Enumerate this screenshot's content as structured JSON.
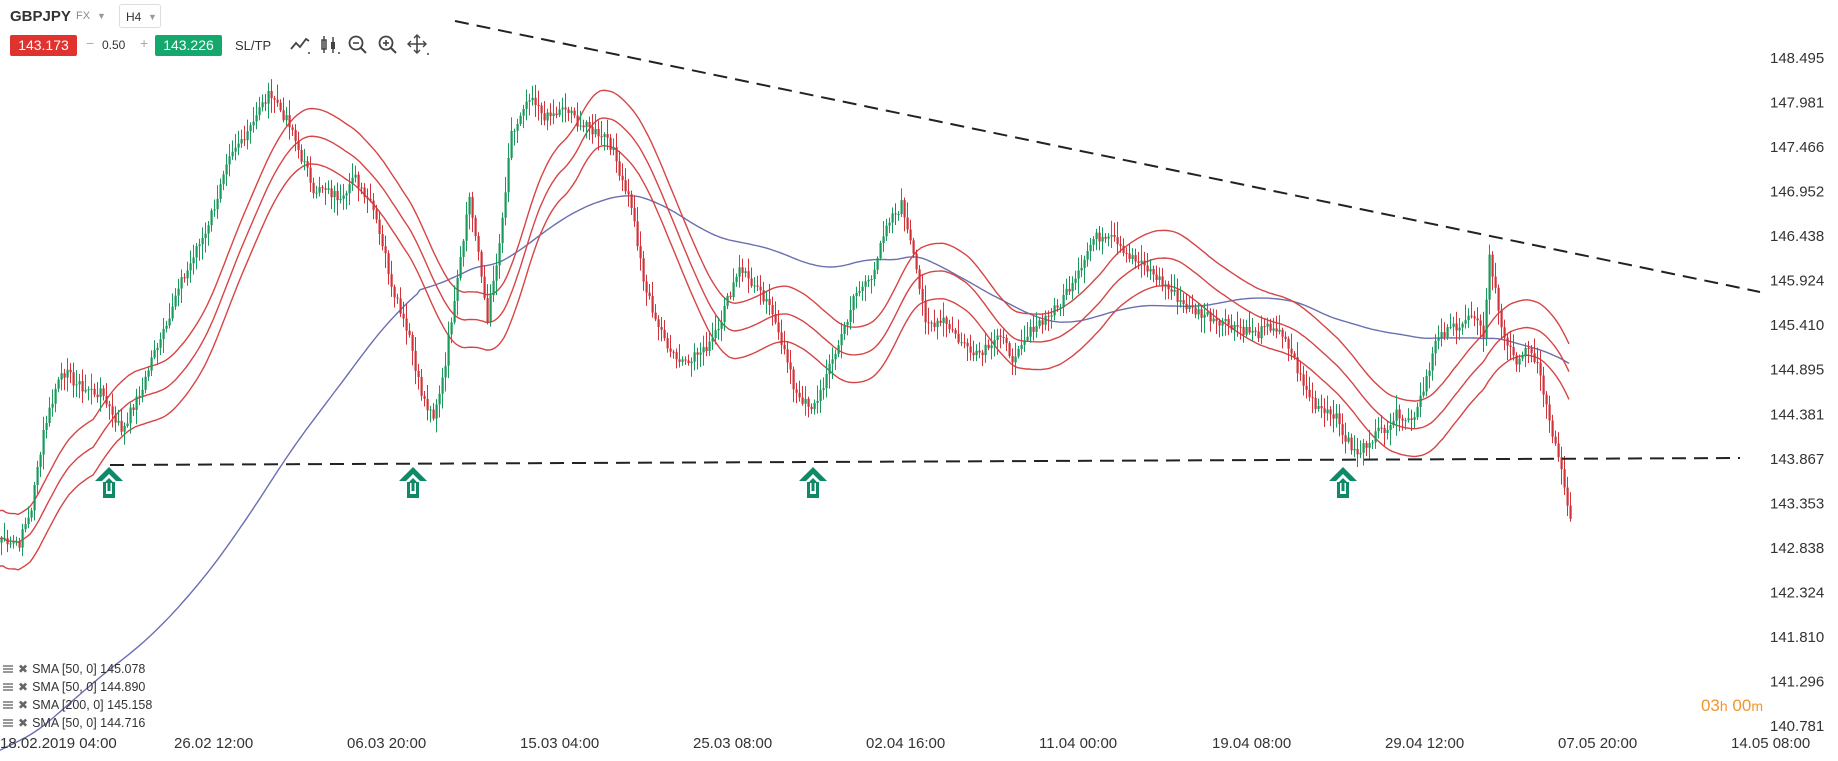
{
  "header": {
    "symbol": "GBPJPY",
    "market": "FX",
    "timeframe": "H4",
    "sell_price": "143.173",
    "buy_price": "143.226",
    "lot_value": "0.50",
    "lot_minus": "−",
    "lot_plus": "+",
    "sltp_label": "SL/TP"
  },
  "tools": [
    "line-chart-icon",
    "candles-icon",
    "zoom-out-icon",
    "zoom-in-icon",
    "crosshair-icon"
  ],
  "colors": {
    "bull": "#1a9a5b",
    "bear": "#d1333b",
    "envelope": "#d64545",
    "sma200": "#6a6fb0",
    "arrow": "#0f8a66",
    "sell": "#e0322f",
    "buy": "#15a86c",
    "timer": "#f0962d"
  },
  "chart_data": {
    "type": "candlestick",
    "symbol": "GBPJPY",
    "timeframe": "H4",
    "ylim": [
      140.6,
      149.0
    ],
    "price_ticks": [
      "148.495",
      "147.981",
      "147.466",
      "146.952",
      "146.438",
      "145.924",
      "145.410",
      "144.895",
      "144.381",
      "143.867",
      "143.353",
      "142.838",
      "142.324",
      "141.810",
      "141.296",
      "140.781"
    ],
    "time_ticks": [
      "18.02.2019 04:00",
      "26.02 12:00",
      "06.03 20:00",
      "15.03 04:00",
      "25.03 08:00",
      "02.04 16:00",
      "11.04 00:00",
      "19.04 08:00",
      "29.04 12:00",
      "07.05 20:00",
      "14.05 08:00"
    ],
    "anchors": [
      [
        0,
        142.95
      ],
      [
        6,
        142.9
      ],
      [
        10,
        143.3
      ],
      [
        14,
        144.2
      ],
      [
        20,
        144.9
      ],
      [
        26,
        144.7
      ],
      [
        34,
        144.6
      ],
      [
        40,
        144.2
      ],
      [
        46,
        144.6
      ],
      [
        52,
        145.2
      ],
      [
        60,
        145.9
      ],
      [
        68,
        146.5
      ],
      [
        76,
        147.3
      ],
      [
        84,
        147.8
      ],
      [
        90,
        148.1
      ],
      [
        96,
        147.7
      ],
      [
        104,
        147.0
      ],
      [
        112,
        146.9
      ],
      [
        118,
        147.1
      ],
      [
        124,
        146.8
      ],
      [
        130,
        145.9
      ],
      [
        136,
        145.3
      ],
      [
        140,
        144.6
      ],
      [
        144,
        144.3
      ],
      [
        148,
        145.0
      ],
      [
        152,
        146.0
      ],
      [
        156,
        146.9
      ],
      [
        162,
        145.5
      ],
      [
        166,
        146.3
      ],
      [
        170,
        147.6
      ],
      [
        176,
        148.0
      ],
      [
        182,
        147.8
      ],
      [
        188,
        147.9
      ],
      [
        194,
        147.7
      ],
      [
        202,
        147.6
      ],
      [
        210,
        146.8
      ],
      [
        214,
        145.9
      ],
      [
        220,
        145.3
      ],
      [
        226,
        145.0
      ],
      [
        234,
        145.1
      ],
      [
        240,
        145.5
      ],
      [
        246,
        146.1
      ],
      [
        252,
        145.8
      ],
      [
        258,
        145.5
      ],
      [
        264,
        144.7
      ],
      [
        270,
        144.4
      ],
      [
        276,
        144.9
      ],
      [
        284,
        145.7
      ],
      [
        290,
        146.0
      ],
      [
        296,
        146.6
      ],
      [
        300,
        146.8
      ],
      [
        304,
        146.3
      ],
      [
        308,
        145.4
      ],
      [
        314,
        145.5
      ],
      [
        320,
        145.2
      ],
      [
        326,
        145.1
      ],
      [
        332,
        145.3
      ],
      [
        338,
        145.0
      ],
      [
        344,
        145.4
      ],
      [
        352,
        145.6
      ],
      [
        358,
        146.0
      ],
      [
        364,
        146.4
      ],
      [
        370,
        146.5
      ],
      [
        376,
        146.2
      ],
      [
        384,
        146.0
      ],
      [
        390,
        145.8
      ],
      [
        396,
        145.6
      ],
      [
        404,
        145.5
      ],
      [
        412,
        145.4
      ],
      [
        418,
        145.3
      ],
      [
        424,
        145.4
      ],
      [
        430,
        145.1
      ],
      [
        434,
        144.7
      ],
      [
        438,
        144.5
      ],
      [
        444,
        144.4
      ],
      [
        448,
        144.1
      ],
      [
        452,
        143.9
      ],
      [
        456,
        144.1
      ],
      [
        460,
        144.2
      ],
      [
        466,
        144.4
      ],
      [
        470,
        144.3
      ],
      [
        474,
        144.7
      ],
      [
        478,
        145.2
      ],
      [
        484,
        145.4
      ],
      [
        490,
        145.5
      ],
      [
        494,
        145.3
      ],
      [
        496,
        146.2
      ],
      [
        500,
        145.4
      ],
      [
        504,
        145.0
      ],
      [
        508,
        145.1
      ],
      [
        512,
        145.0
      ],
      [
        514,
        144.6
      ],
      [
        518,
        144.0
      ],
      [
        520,
        143.7
      ],
      [
        523,
        143.1
      ]
    ],
    "indicators": [
      {
        "name": "SMA [50, 0]",
        "value": "145.078"
      },
      {
        "name": "SMA [50, 0]",
        "value": "144.890"
      },
      {
        "name": "SMA [200, 0]",
        "value": "145.158"
      },
      {
        "name": "SMA [50, 0]",
        "value": "144.716"
      }
    ],
    "last_price": 143.173,
    "countdown": "03h 00m"
  },
  "timer": {
    "hours": "03",
    "h": "h",
    "minutes": "00",
    "m": "m"
  }
}
